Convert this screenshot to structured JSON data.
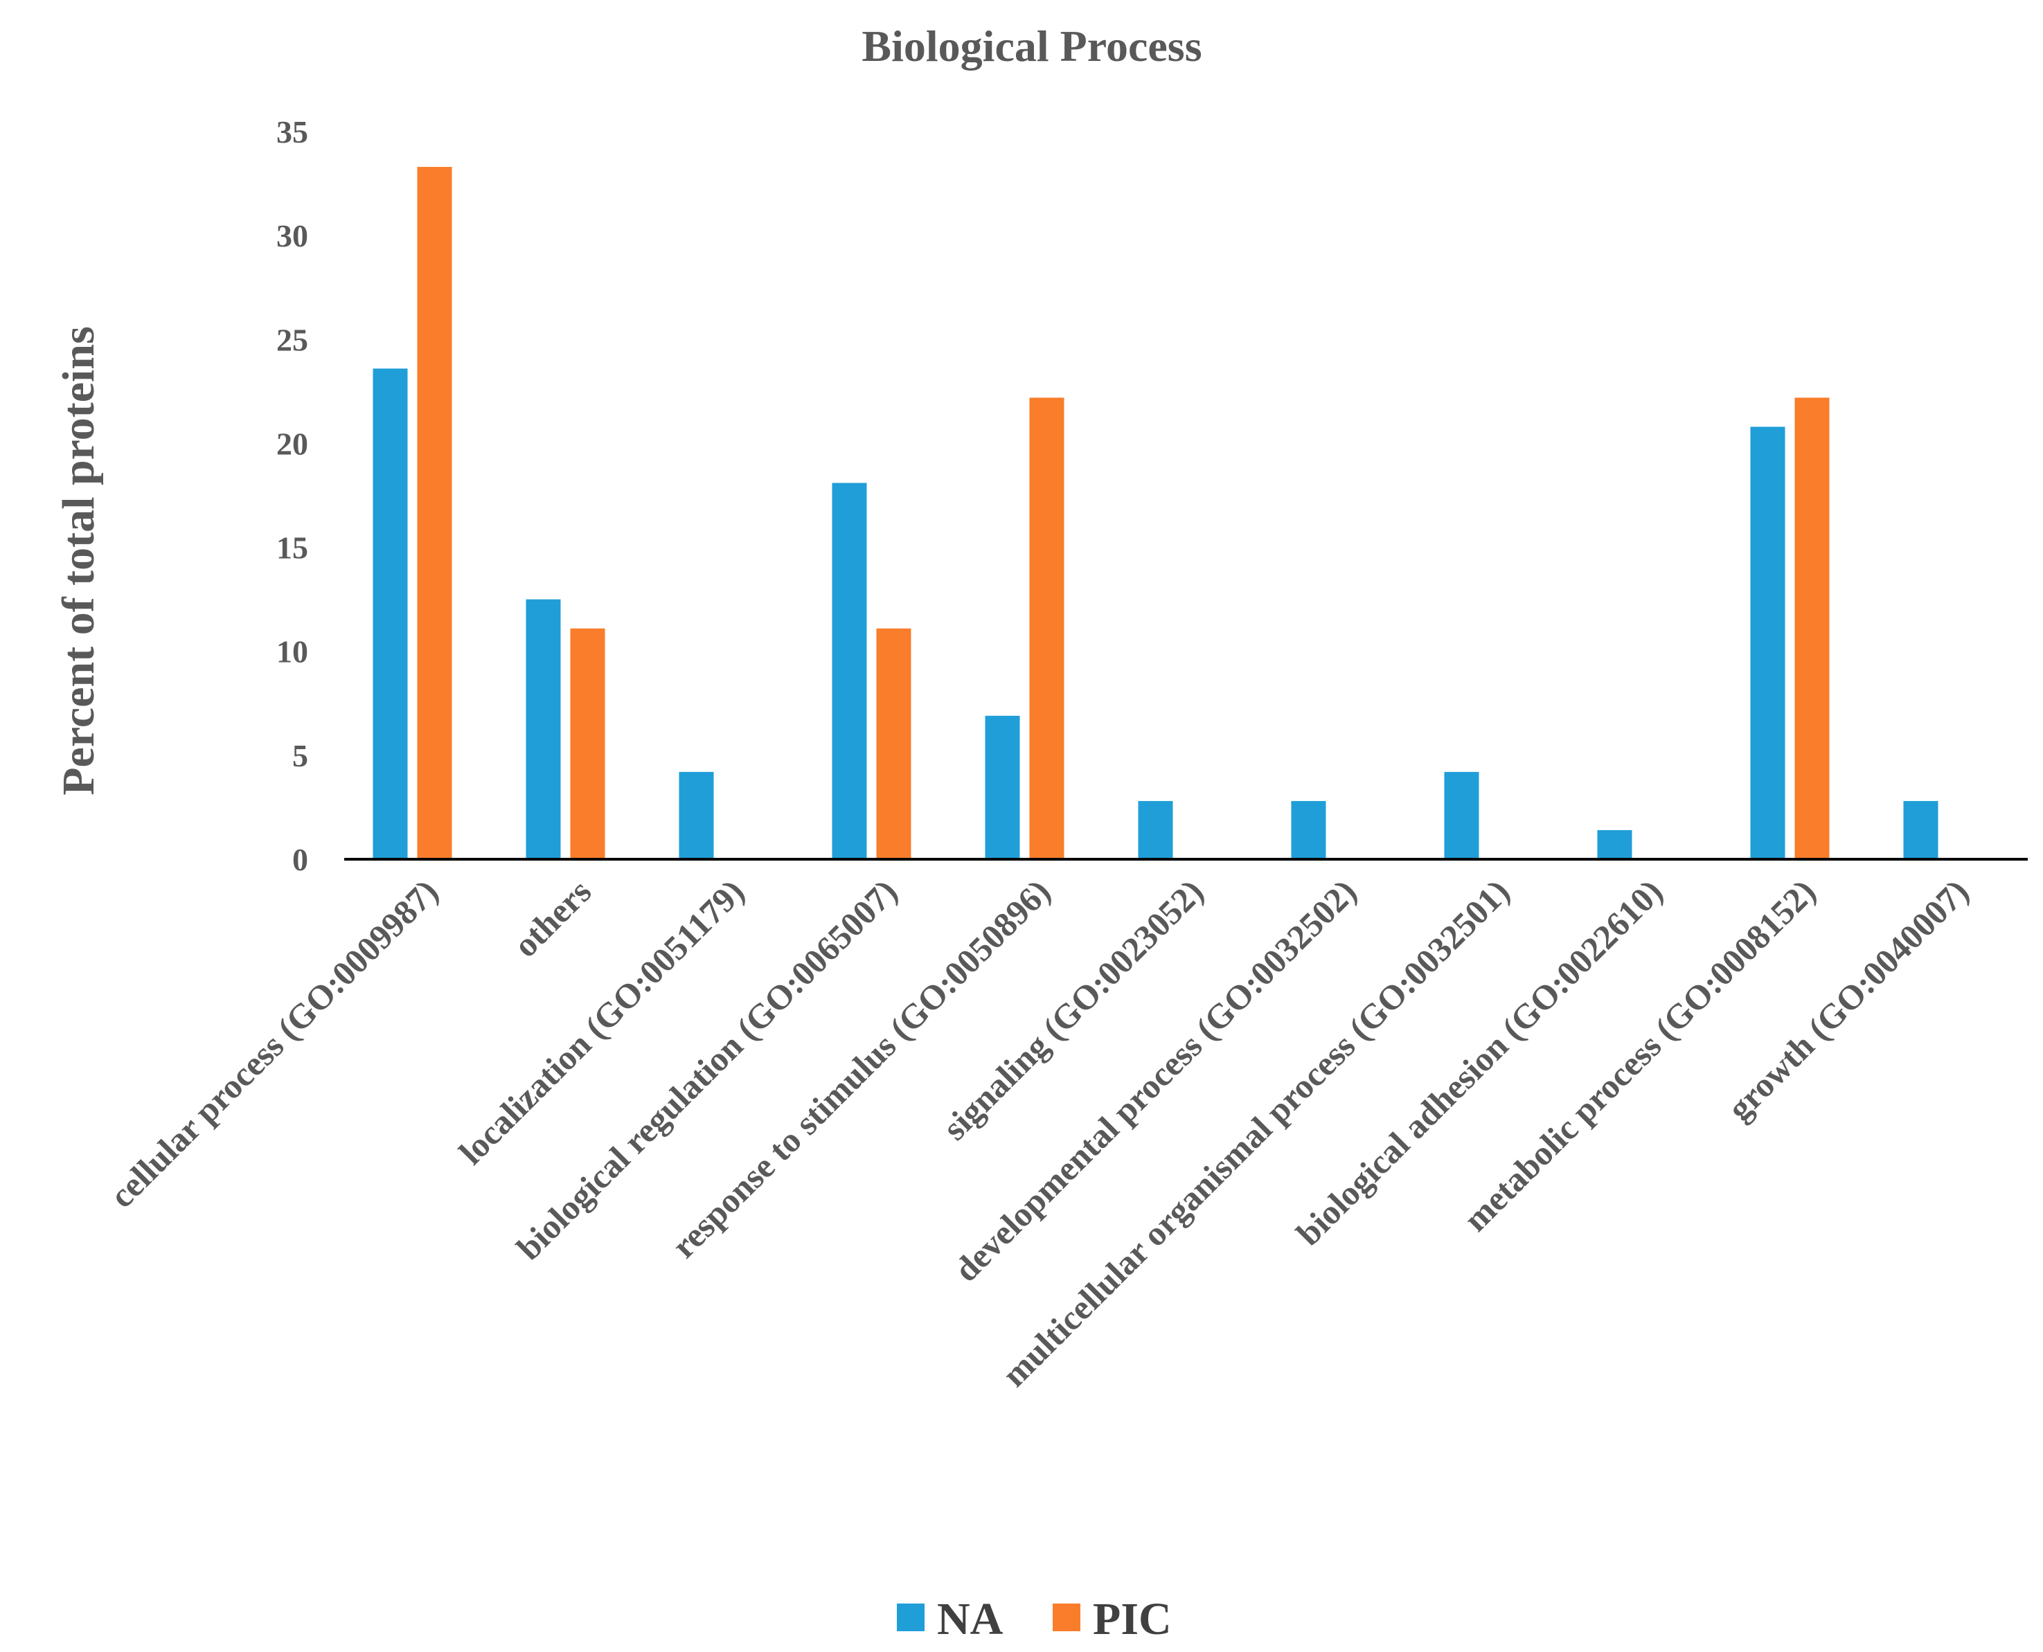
{
  "chart_data": {
    "type": "bar",
    "title": "Biological Process",
    "xlabel": "",
    "ylabel": "Percent of total proteins",
    "ylim": [
      0,
      35
    ],
    "yticks": [
      0,
      5,
      10,
      15,
      20,
      25,
      30,
      35
    ],
    "grid": false,
    "legend_position": "bottom",
    "categories": [
      "cellular process (GO:0009987)",
      "others",
      "localization (GO:0051179)",
      "biological regulation (GO:0065007)",
      "response to stimulus (GO:0050896)",
      "signaling (GO:0023052)",
      "developmental process (GO:0032502)",
      "multicellular organismal process (GO:0032501)",
      "biological adhesion (GO:0022610)",
      "metabolic process (GO:0008152)",
      "growth (GO:0040007)"
    ],
    "series": [
      {
        "name": "NA",
        "color": "#1f9ed8",
        "values": [
          23.6,
          12.5,
          4.2,
          18.1,
          6.9,
          2.8,
          2.8,
          4.2,
          1.4,
          20.8,
          2.8
        ]
      },
      {
        "name": "PIC",
        "color": "#f97d2a",
        "values": [
          33.3,
          11.1,
          0,
          11.1,
          22.2,
          0,
          0,
          0,
          0,
          22.2,
          0
        ]
      }
    ]
  }
}
